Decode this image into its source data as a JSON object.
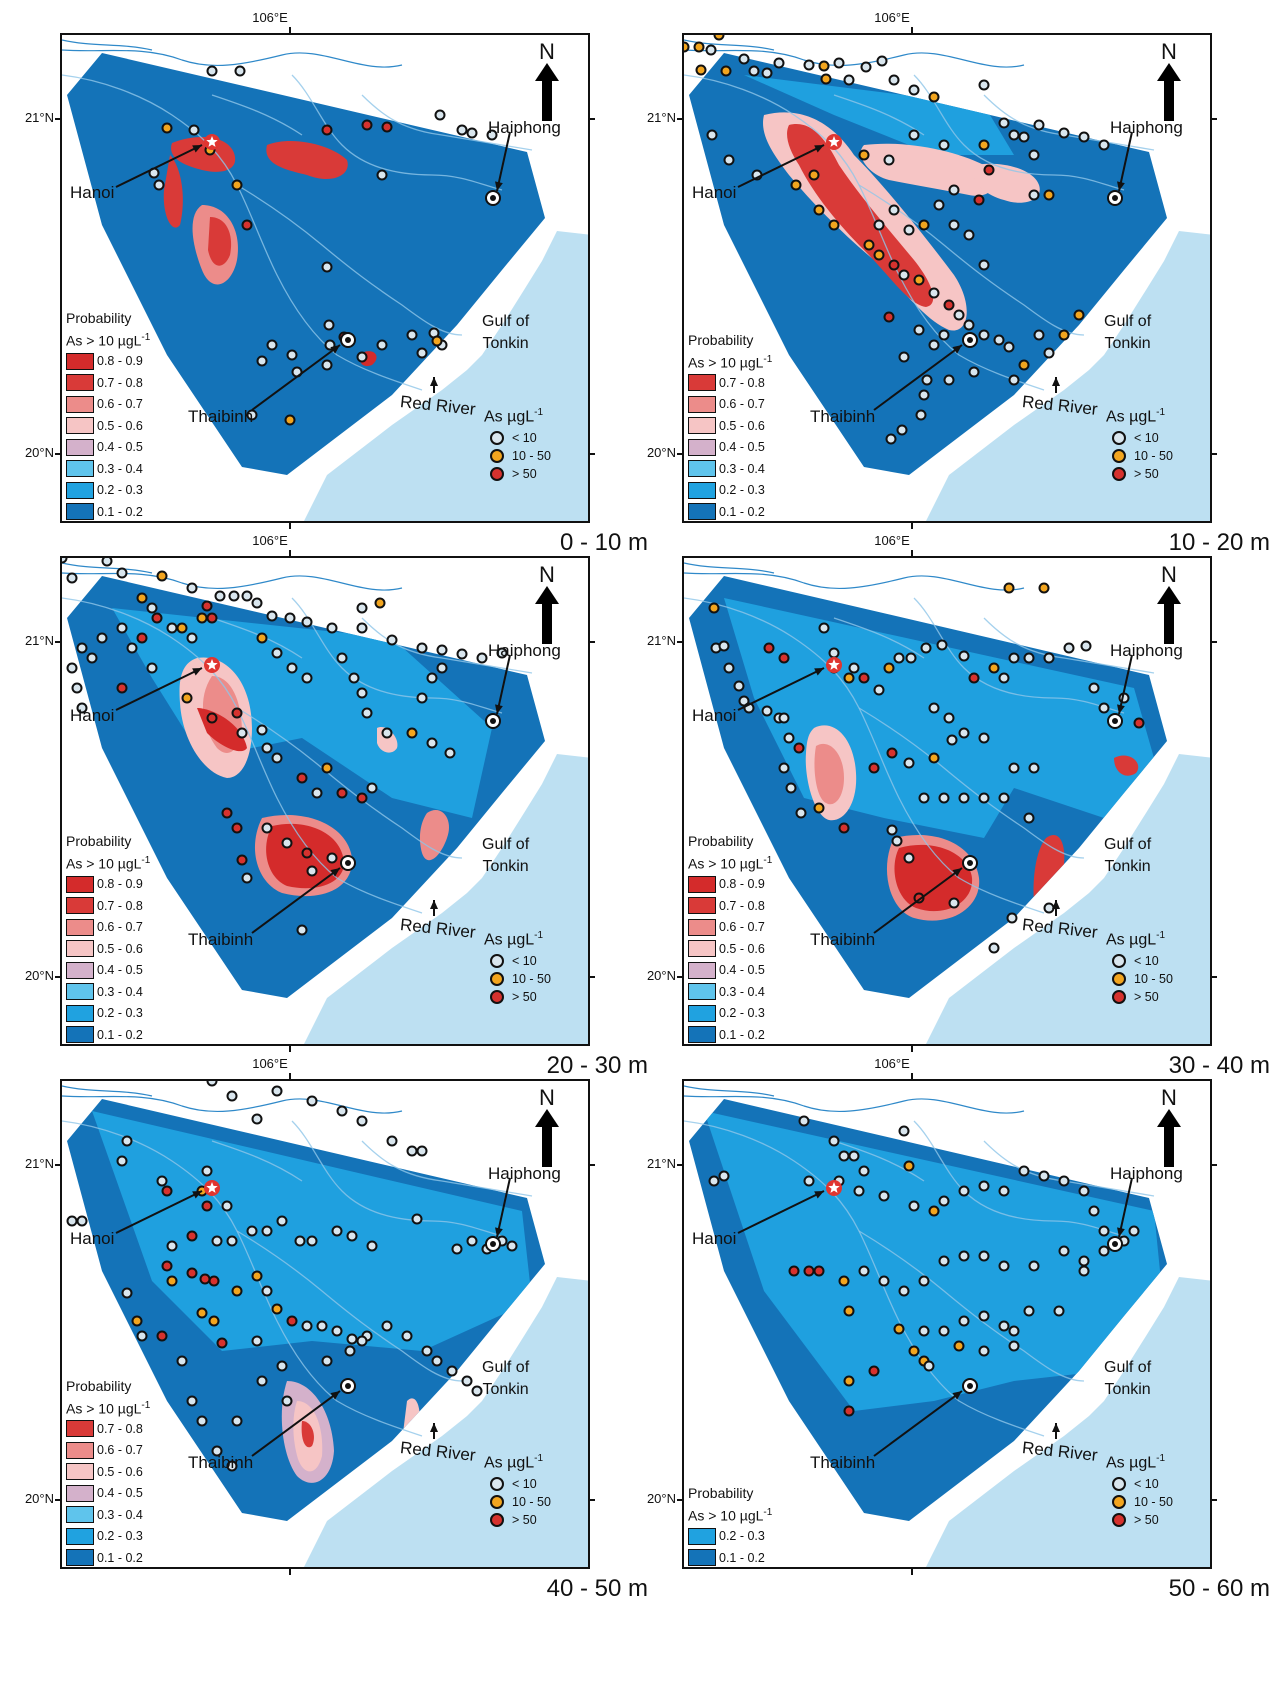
{
  "common": {
    "lon_label": "106°E",
    "lat_top": "21°N",
    "lat_bottom": "20°N",
    "north": "N",
    "places": {
      "hanoi": "Hanoi",
      "haiphong": "Haiphong",
      "thaibinh": "Thaibinh",
      "red_river": "Red River"
    },
    "gulf": {
      "line1": "Gulf of",
      "line2": "Tonkin"
    },
    "prob_title_line1": "Probability",
    "prob_title_line2": "As > 10 µgL",
    "prob_title_sup": "-1",
    "as_title": "As µgL",
    "as_title_sup": "-1",
    "as_classes": [
      {
        "label": "< 10",
        "color": "#d9e6ee"
      },
      {
        "label": "10 - 50",
        "color": "#f2a51f"
      },
      {
        "label": "> 50",
        "color": "#d6322e"
      }
    ],
    "colors": {
      "sea": "#bde0f2",
      "land": "#ffffff",
      "river": "#2f89c9"
    }
  },
  "panels": [
    {
      "depth": "0 - 10 m",
      "legend": [
        {
          "label": "0.8 - 0.9",
          "color": "#d42b2b"
        },
        {
          "label": "0.7 - 0.8",
          "color": "#d93a38"
        },
        {
          "label": "0.6 - 0.7",
          "color": "#ec8c8a"
        },
        {
          "label": "0.5 - 0.6",
          "color": "#f6c5c5"
        },
        {
          "label": "0.4 - 0.5",
          "color": "#d4b1cb"
        },
        {
          "label": "0.3 - 0.4",
          "color": "#5fc4ec"
        },
        {
          "label": "0.2 - 0.3",
          "color": "#20a2e0"
        },
        {
          "label": "0.1 - 0.2",
          "color": "#1473b8"
        }
      ]
    },
    {
      "depth": "10 - 20 m",
      "legend": [
        {
          "label": "0.7 - 0.8",
          "color": "#d93a38"
        },
        {
          "label": "0.6 - 0.7",
          "color": "#ec8c8a"
        },
        {
          "label": "0.5 - 0.6",
          "color": "#f6c5c5"
        },
        {
          "label": "0.4 - 0.5",
          "color": "#d4b1cb"
        },
        {
          "label": "0.3 - 0.4",
          "color": "#5fc4ec"
        },
        {
          "label": "0.2 - 0.3",
          "color": "#20a2e0"
        },
        {
          "label": "0.1 - 0.2",
          "color": "#1473b8"
        }
      ]
    },
    {
      "depth": "20 - 30 m",
      "legend": [
        {
          "label": "0.8 - 0.9",
          "color": "#d42b2b"
        },
        {
          "label": "0.7 - 0.8",
          "color": "#d93a38"
        },
        {
          "label": "0.6 - 0.7",
          "color": "#ec8c8a"
        },
        {
          "label": "0.5 - 0.6",
          "color": "#f6c5c5"
        },
        {
          "label": "0.4 - 0.5",
          "color": "#d4b1cb"
        },
        {
          "label": "0.3 - 0.4",
          "color": "#5fc4ec"
        },
        {
          "label": "0.2 - 0.3",
          "color": "#20a2e0"
        },
        {
          "label": "0.1 - 0.2",
          "color": "#1473b8"
        }
      ]
    },
    {
      "depth": "30 - 40 m",
      "legend": [
        {
          "label": "0.8 - 0.9",
          "color": "#d42b2b"
        },
        {
          "label": "0.7 - 0.8",
          "color": "#d93a38"
        },
        {
          "label": "0.6 - 0.7",
          "color": "#ec8c8a"
        },
        {
          "label": "0.5 - 0.6",
          "color": "#f6c5c5"
        },
        {
          "label": "0.4 - 0.5",
          "color": "#d4b1cb"
        },
        {
          "label": "0.3 - 0.4",
          "color": "#5fc4ec"
        },
        {
          "label": "0.2 - 0.3",
          "color": "#20a2e0"
        },
        {
          "label": "0.1 - 0.2",
          "color": "#1473b8"
        }
      ]
    },
    {
      "depth": "40 - 50 m",
      "legend": [
        {
          "label": "0.7 - 0.8",
          "color": "#d93a38"
        },
        {
          "label": "0.6 - 0.7",
          "color": "#ec8c8a"
        },
        {
          "label": "0.5 - 0.6",
          "color": "#f6c5c5"
        },
        {
          "label": "0.4 - 0.5",
          "color": "#d4b1cb"
        },
        {
          "label": "0.3 - 0.4",
          "color": "#5fc4ec"
        },
        {
          "label": "0.2 - 0.3",
          "color": "#20a2e0"
        },
        {
          "label": "0.1 - 0.2",
          "color": "#1473b8"
        }
      ]
    },
    {
      "depth": "50 - 60 m",
      "legend": [
        {
          "label": "0.2 - 0.3",
          "color": "#20a2e0"
        },
        {
          "label": "0.1 - 0.2",
          "color": "#1473b8"
        }
      ]
    }
  ]
}
